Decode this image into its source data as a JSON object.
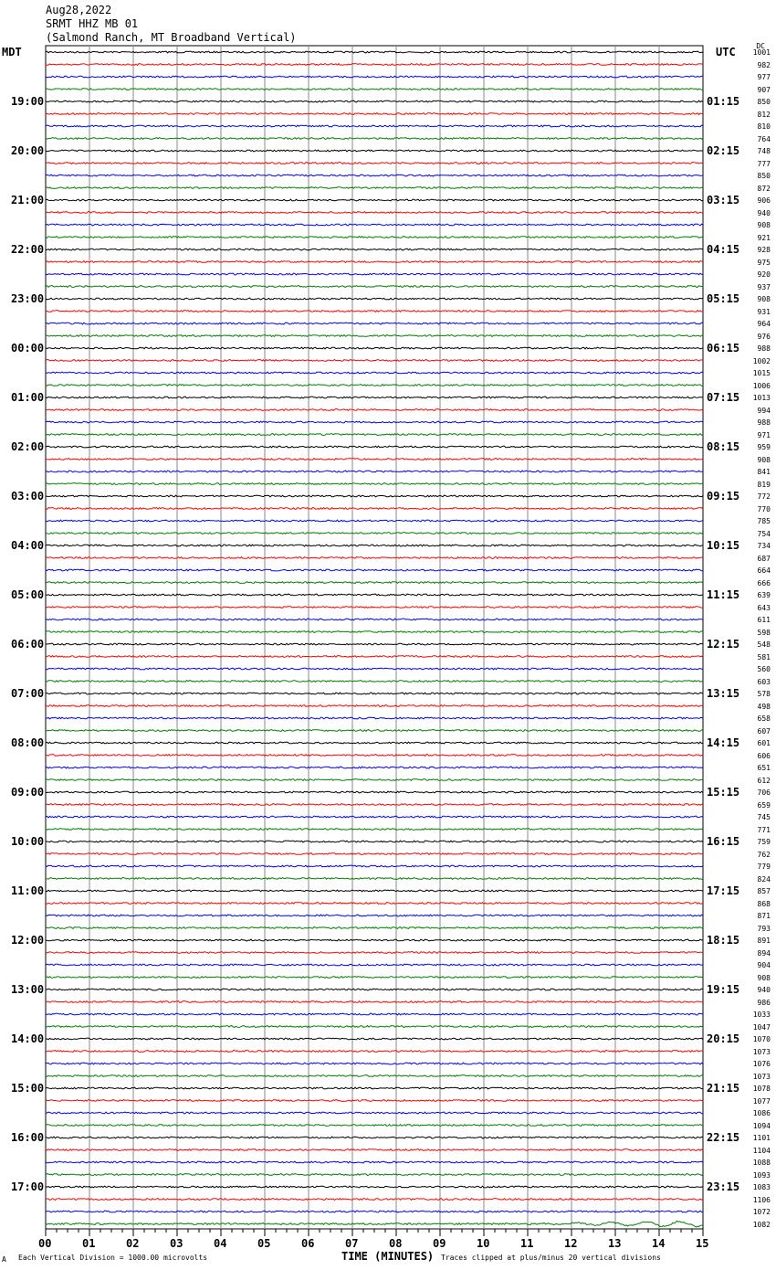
{
  "header": {
    "date": "Aug28,2022",
    "station": "SRMT HHZ MB 01",
    "location": "(Salmond Ranch, MT Broadband Vertical)"
  },
  "left_tz": "MDT",
  "right_tz": "UTC",
  "dc_label": "DC",
  "chart_data": {
    "type": "line",
    "title": "",
    "xlabel": "TIME (MINUTES)",
    "xlim": [
      0,
      15
    ],
    "x_ticks": [
      "00",
      "01",
      "02",
      "03",
      "04",
      "05",
      "06",
      "07",
      "08",
      "09",
      "10",
      "11",
      "12",
      "13",
      "14",
      "15"
    ],
    "grid": true,
    "trace_colors": [
      "#000000",
      "#ff0000",
      "#0000ff",
      "#008000"
    ],
    "left_hour_labels": [
      "19:00",
      "20:00",
      "21:00",
      "22:00",
      "23:00",
      "00:00",
      "01:00",
      "02:00",
      "03:00",
      "04:00",
      "05:00",
      "06:00",
      "07:00",
      "08:00",
      "09:00",
      "10:00",
      "11:00",
      "12:00",
      "13:00",
      "14:00",
      "15:00",
      "16:00",
      "17:00"
    ],
    "right_hour_labels": [
      "01:15",
      "02:15",
      "03:15",
      "04:15",
      "05:15",
      "06:15",
      "07:15",
      "08:15",
      "09:15",
      "10:15",
      "11:15",
      "12:15",
      "13:15",
      "14:15",
      "15:15",
      "16:15",
      "17:15",
      "18:15",
      "19:15",
      "20:15",
      "21:15",
      "22:15",
      "23:15"
    ],
    "dc_offsets": [
      "1001",
      "982",
      "977",
      "907",
      "850",
      "812",
      "810",
      "764",
      "748",
      "777",
      "850",
      "872",
      "906",
      "940",
      "908",
      "921",
      "928",
      "975",
      "920",
      "937",
      "908",
      "931",
      "964",
      "976",
      "988",
      "1002",
      "1015",
      "1006",
      "1013",
      "994",
      "988",
      "971",
      "959",
      "908",
      "841",
      "819",
      "772",
      "770",
      "785",
      "754",
      "734",
      "687",
      "664",
      "666",
      "639",
      "643",
      "611",
      "598",
      "548",
      "581",
      "560",
      "603",
      "578",
      "498",
      "658",
      "607",
      "601",
      "606",
      "651",
      "612",
      "706",
      "659",
      "745",
      "771",
      "759",
      "762",
      "779",
      "824",
      "857",
      "868",
      "871",
      "793",
      "891",
      "894",
      "904",
      "908",
      "940",
      "986",
      "1033",
      "1047",
      "1070",
      "1073",
      "1076",
      "1073",
      "1078",
      "1077",
      "1086",
      "1094",
      "1101",
      "1104",
      "1088",
      "1093",
      "1083",
      "1106",
      "1072",
      "1082"
    ]
  },
  "footer": {
    "scale": "Each Vertical Division = 1000.00 microvolts",
    "clip": "Traces clipped at plus/minus 20 vertical divisions",
    "corner_mark": "A"
  }
}
